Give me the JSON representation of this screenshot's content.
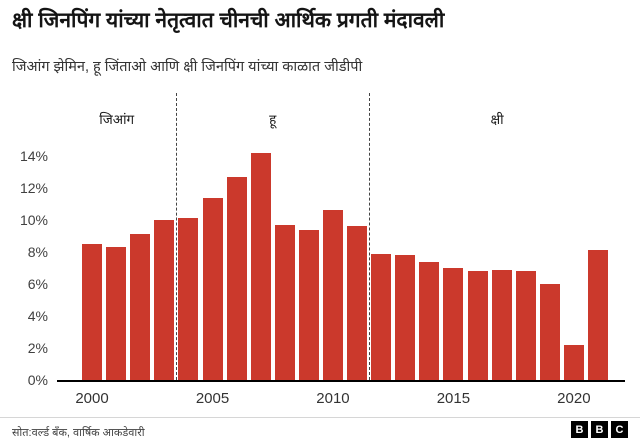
{
  "header": {
    "title": "क्षी जिनपिंग यांच्या नेतृत्वात चीनची आर्थिक प्रगती मंदावली",
    "subtitle": "जिआंग झेमिन, हू जिंताओ आणि क्षी जिनपिंग यांच्या काळात जीडीपी"
  },
  "chart_data": {
    "type": "bar",
    "title": "क्षी जिनपिंग यांच्या नेतृत्वात चीनची आर्थिक प्रगती मंदावली",
    "subtitle": "जिआंग झेमिन, हू जिंताओ आणि क्षी जिनपिंग यांच्या काळात जीडीपी",
    "x": [
      2000,
      2001,
      2002,
      2003,
      2004,
      2005,
      2006,
      2007,
      2008,
      2009,
      2010,
      2011,
      2012,
      2013,
      2014,
      2015,
      2016,
      2017,
      2018,
      2019,
      2020,
      2021
    ],
    "values": [
      8.5,
      8.3,
      9.1,
      10.0,
      10.1,
      11.4,
      12.7,
      14.2,
      9.7,
      9.4,
      10.6,
      9.6,
      7.9,
      7.8,
      7.4,
      7.0,
      6.8,
      6.9,
      6.8,
      6.0,
      2.2,
      8.1
    ],
    "xticks": [
      2000,
      2005,
      2010,
      2015,
      2020
    ],
    "yticks": [
      0,
      2,
      4,
      6,
      8,
      10,
      12,
      14
    ],
    "ytick_suffix": "%",
    "ylim": [
      0,
      15
    ],
    "xlabel": "",
    "ylabel": "",
    "grid": false,
    "legend": "none",
    "bar_color": "#cb392c",
    "sections": [
      {
        "label": "जिआंग",
        "from": 2000,
        "to": 2003
      },
      {
        "label": "हू",
        "from": 2004,
        "to": 2011
      },
      {
        "label": "क्षी",
        "from": 2012,
        "to": 2021
      }
    ]
  },
  "footer": {
    "source": "सोत:वर्ल्ड बँक, वार्षिक आकडेवारी",
    "logo": [
      "B",
      "B",
      "C"
    ]
  }
}
